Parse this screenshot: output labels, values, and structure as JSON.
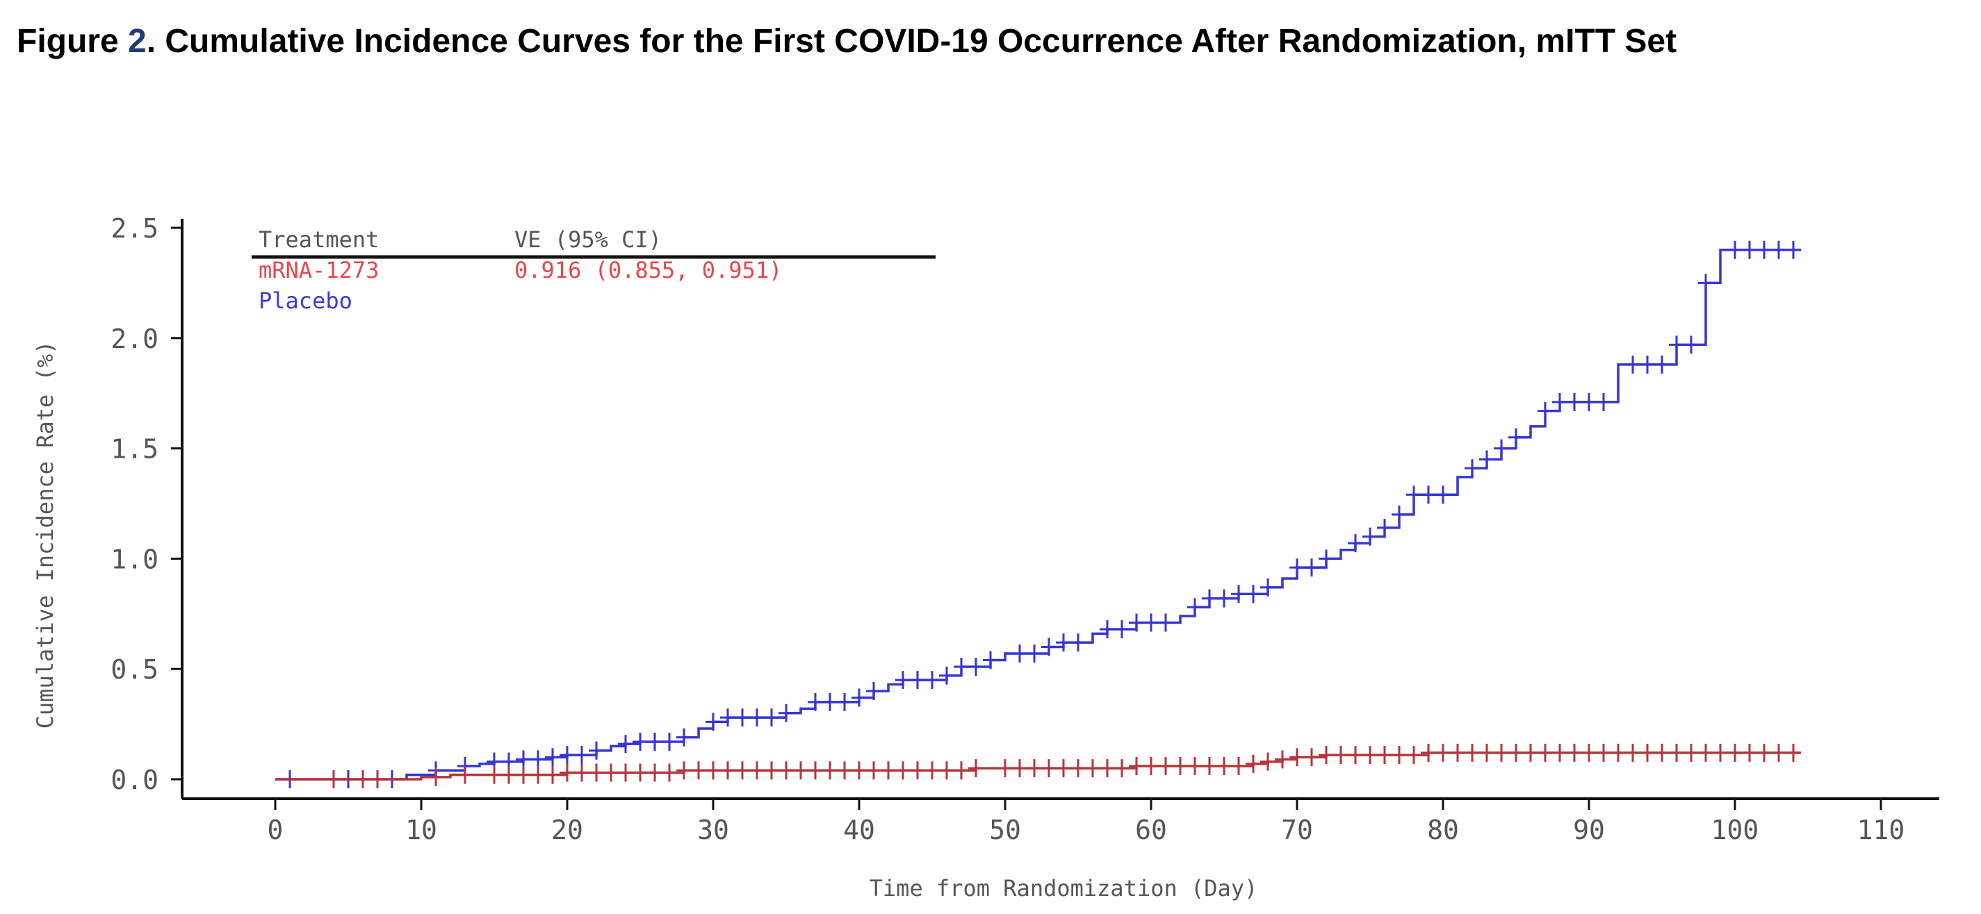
{
  "figure": {
    "label": "Figure",
    "number": "2",
    "title": ". Cumulative Incidence Curves for the First COVID-19 Occurrence After Randomization, mITT Set"
  },
  "chart_data": {
    "type": "line",
    "xlabel": "Time from Randomization (Day)",
    "ylabel": "Cumulative Incidence Rate (%)",
    "xlim": [
      -6,
      119
    ],
    "ylim": [
      -0.08,
      2.55
    ],
    "xticks": [
      0,
      10,
      20,
      30,
      40,
      50,
      60,
      70,
      80,
      90,
      100,
      110
    ],
    "yticks": [
      0.0,
      0.5,
      1.0,
      1.5,
      2.0,
      2.5
    ],
    "grid": false,
    "legend": {
      "position": "top-left",
      "headers": [
        "Treatment",
        "VE (95% CI)"
      ],
      "entries": [
        {
          "name": "mRNA-1273",
          "ve": "0.916 (0.855, 0.951)",
          "color": "#e8474b"
        },
        {
          "name": "Placebo",
          "ve": "",
          "color": "#3b3bdc"
        }
      ]
    },
    "series": [
      {
        "name": "Placebo",
        "color": "#3535d6",
        "step_points": [
          [
            0,
            0
          ],
          [
            8,
            0
          ],
          [
            9,
            0.02
          ],
          [
            11,
            0.04
          ],
          [
            13,
            0.06
          ],
          [
            14,
            0.07
          ],
          [
            15,
            0.08
          ],
          [
            17,
            0.09
          ],
          [
            19,
            0.1
          ],
          [
            20,
            0.11
          ],
          [
            22,
            0.13
          ],
          [
            23,
            0.15
          ],
          [
            24,
            0.16
          ],
          [
            25,
            0.17
          ],
          [
            28,
            0.19
          ],
          [
            29,
            0.23
          ],
          [
            30,
            0.26
          ],
          [
            31,
            0.28
          ],
          [
            35,
            0.3
          ],
          [
            36,
            0.32
          ],
          [
            37,
            0.35
          ],
          [
            40,
            0.37
          ],
          [
            41,
            0.4
          ],
          [
            42,
            0.43
          ],
          [
            43,
            0.45
          ],
          [
            46,
            0.47
          ],
          [
            47,
            0.51
          ],
          [
            49,
            0.54
          ],
          [
            50,
            0.57
          ],
          [
            53,
            0.6
          ],
          [
            54,
            0.62
          ],
          [
            56,
            0.66
          ],
          [
            57,
            0.68
          ],
          [
            59,
            0.71
          ],
          [
            62,
            0.74
          ],
          [
            63,
            0.78
          ],
          [
            64,
            0.82
          ],
          [
            66,
            0.84
          ],
          [
            68,
            0.87
          ],
          [
            69,
            0.91
          ],
          [
            70,
            0.96
          ],
          [
            72,
            1.0
          ],
          [
            73,
            1.04
          ],
          [
            74,
            1.07
          ],
          [
            75,
            1.1
          ],
          [
            76,
            1.14
          ],
          [
            77,
            1.2
          ],
          [
            78,
            1.29
          ],
          [
            81,
            1.37
          ],
          [
            82,
            1.41
          ],
          [
            83,
            1.45
          ],
          [
            84,
            1.5
          ],
          [
            85,
            1.55
          ],
          [
            86,
            1.6
          ],
          [
            87,
            1.67
          ],
          [
            88,
            1.71
          ],
          [
            92,
            1.88
          ],
          [
            96,
            1.97
          ],
          [
            98,
            2.25
          ],
          [
            99,
            2.4
          ],
          [
            104.5,
            2.4
          ]
        ],
        "censor_x": [
          1,
          5,
          6,
          8,
          11,
          13,
          15,
          16,
          17,
          18,
          19,
          20,
          21,
          22,
          24,
          25,
          26,
          27,
          28,
          30,
          31,
          32,
          33,
          34,
          35,
          37,
          38,
          39,
          40,
          41,
          43,
          44,
          45,
          46,
          47,
          48,
          49,
          51,
          52,
          53,
          54,
          55,
          57,
          58,
          59,
          60,
          61,
          63,
          64,
          65,
          66,
          67,
          68,
          70,
          71,
          72,
          74,
          75,
          76,
          77,
          78,
          79,
          80,
          82,
          83,
          84,
          85,
          87,
          88,
          89,
          90,
          91,
          93,
          94,
          95,
          96,
          97,
          98,
          100,
          101,
          102,
          103,
          104
        ]
      },
      {
        "name": "mRNA-1273",
        "color": "#b5353d",
        "step_points": [
          [
            0,
            0
          ],
          [
            9,
            0
          ],
          [
            10,
            0.01
          ],
          [
            12,
            0.02
          ],
          [
            20,
            0.03
          ],
          [
            28,
            0.04
          ],
          [
            47,
            0.04
          ],
          [
            48,
            0.05
          ],
          [
            59,
            0.06
          ],
          [
            67,
            0.07
          ],
          [
            68,
            0.08
          ],
          [
            69,
            0.09
          ],
          [
            70,
            0.1
          ],
          [
            72,
            0.11
          ],
          [
            79,
            0.12
          ],
          [
            104.5,
            0.12
          ]
        ],
        "censor_x": [
          4,
          6,
          7,
          11,
          13,
          15,
          16,
          17,
          18,
          19,
          20,
          21,
          22,
          23,
          24,
          25,
          26,
          27,
          28,
          29,
          30,
          31,
          32,
          33,
          34,
          35,
          36,
          37,
          38,
          39,
          40,
          41,
          42,
          43,
          44,
          45,
          46,
          47,
          48,
          50,
          51,
          52,
          53,
          54,
          55,
          56,
          57,
          58,
          59,
          60,
          61,
          62,
          63,
          64,
          65,
          66,
          67,
          68,
          69,
          70,
          71,
          72,
          73,
          74,
          75,
          76,
          77,
          78,
          79,
          80,
          81,
          82,
          83,
          84,
          85,
          86,
          87,
          88,
          89,
          90,
          91,
          92,
          93,
          94,
          95,
          96,
          97,
          98,
          99,
          100,
          101,
          102,
          103,
          104
        ]
      }
    ]
  }
}
